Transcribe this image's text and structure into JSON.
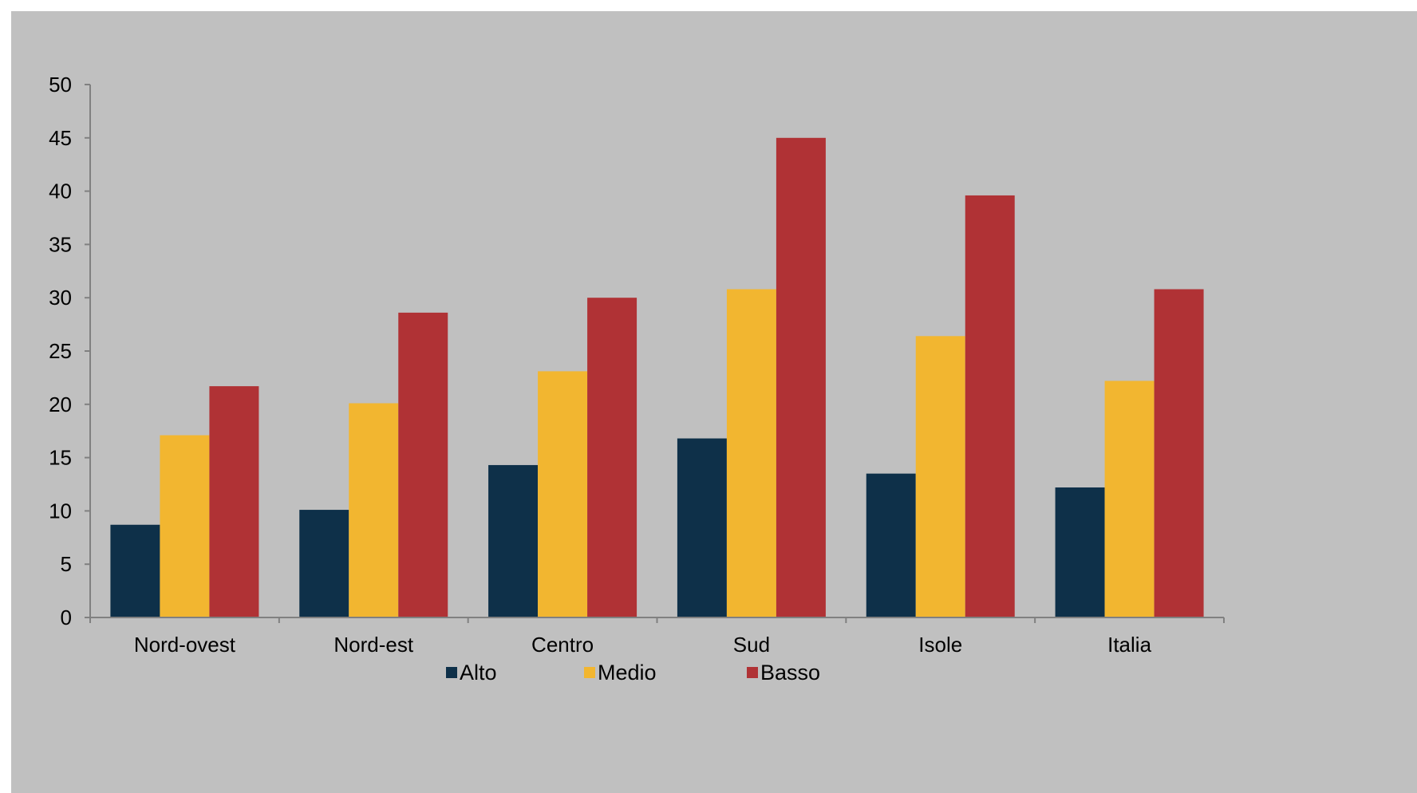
{
  "chart_data": {
    "type": "bar",
    "title": "",
    "xlabel": "",
    "ylabel": "",
    "categories": [
      "Nord-ovest",
      "Nord-est",
      "Centro",
      "Sud",
      "Isole",
      "Italia"
    ],
    "series": [
      {
        "name": "Alto",
        "color": "#0e3049",
        "values": [
          8.7,
          10.1,
          14.3,
          16.8,
          13.5,
          12.2
        ]
      },
      {
        "name": "Medio",
        "color": "#f2b630",
        "values": [
          17.1,
          20.1,
          23.1,
          30.8,
          26.4,
          22.2
        ]
      },
      {
        "name": "Basso",
        "color": "#b03235",
        "values": [
          21.7,
          28.6,
          30.0,
          45.0,
          39.6,
          30.8
        ]
      }
    ],
    "ylim": [
      0,
      50
    ],
    "yticks": [
      "0",
      "5",
      "10",
      "15",
      "20",
      "25",
      "30",
      "35",
      "40",
      "45",
      "50"
    ],
    "grid": false,
    "legend_position": "bottom"
  }
}
